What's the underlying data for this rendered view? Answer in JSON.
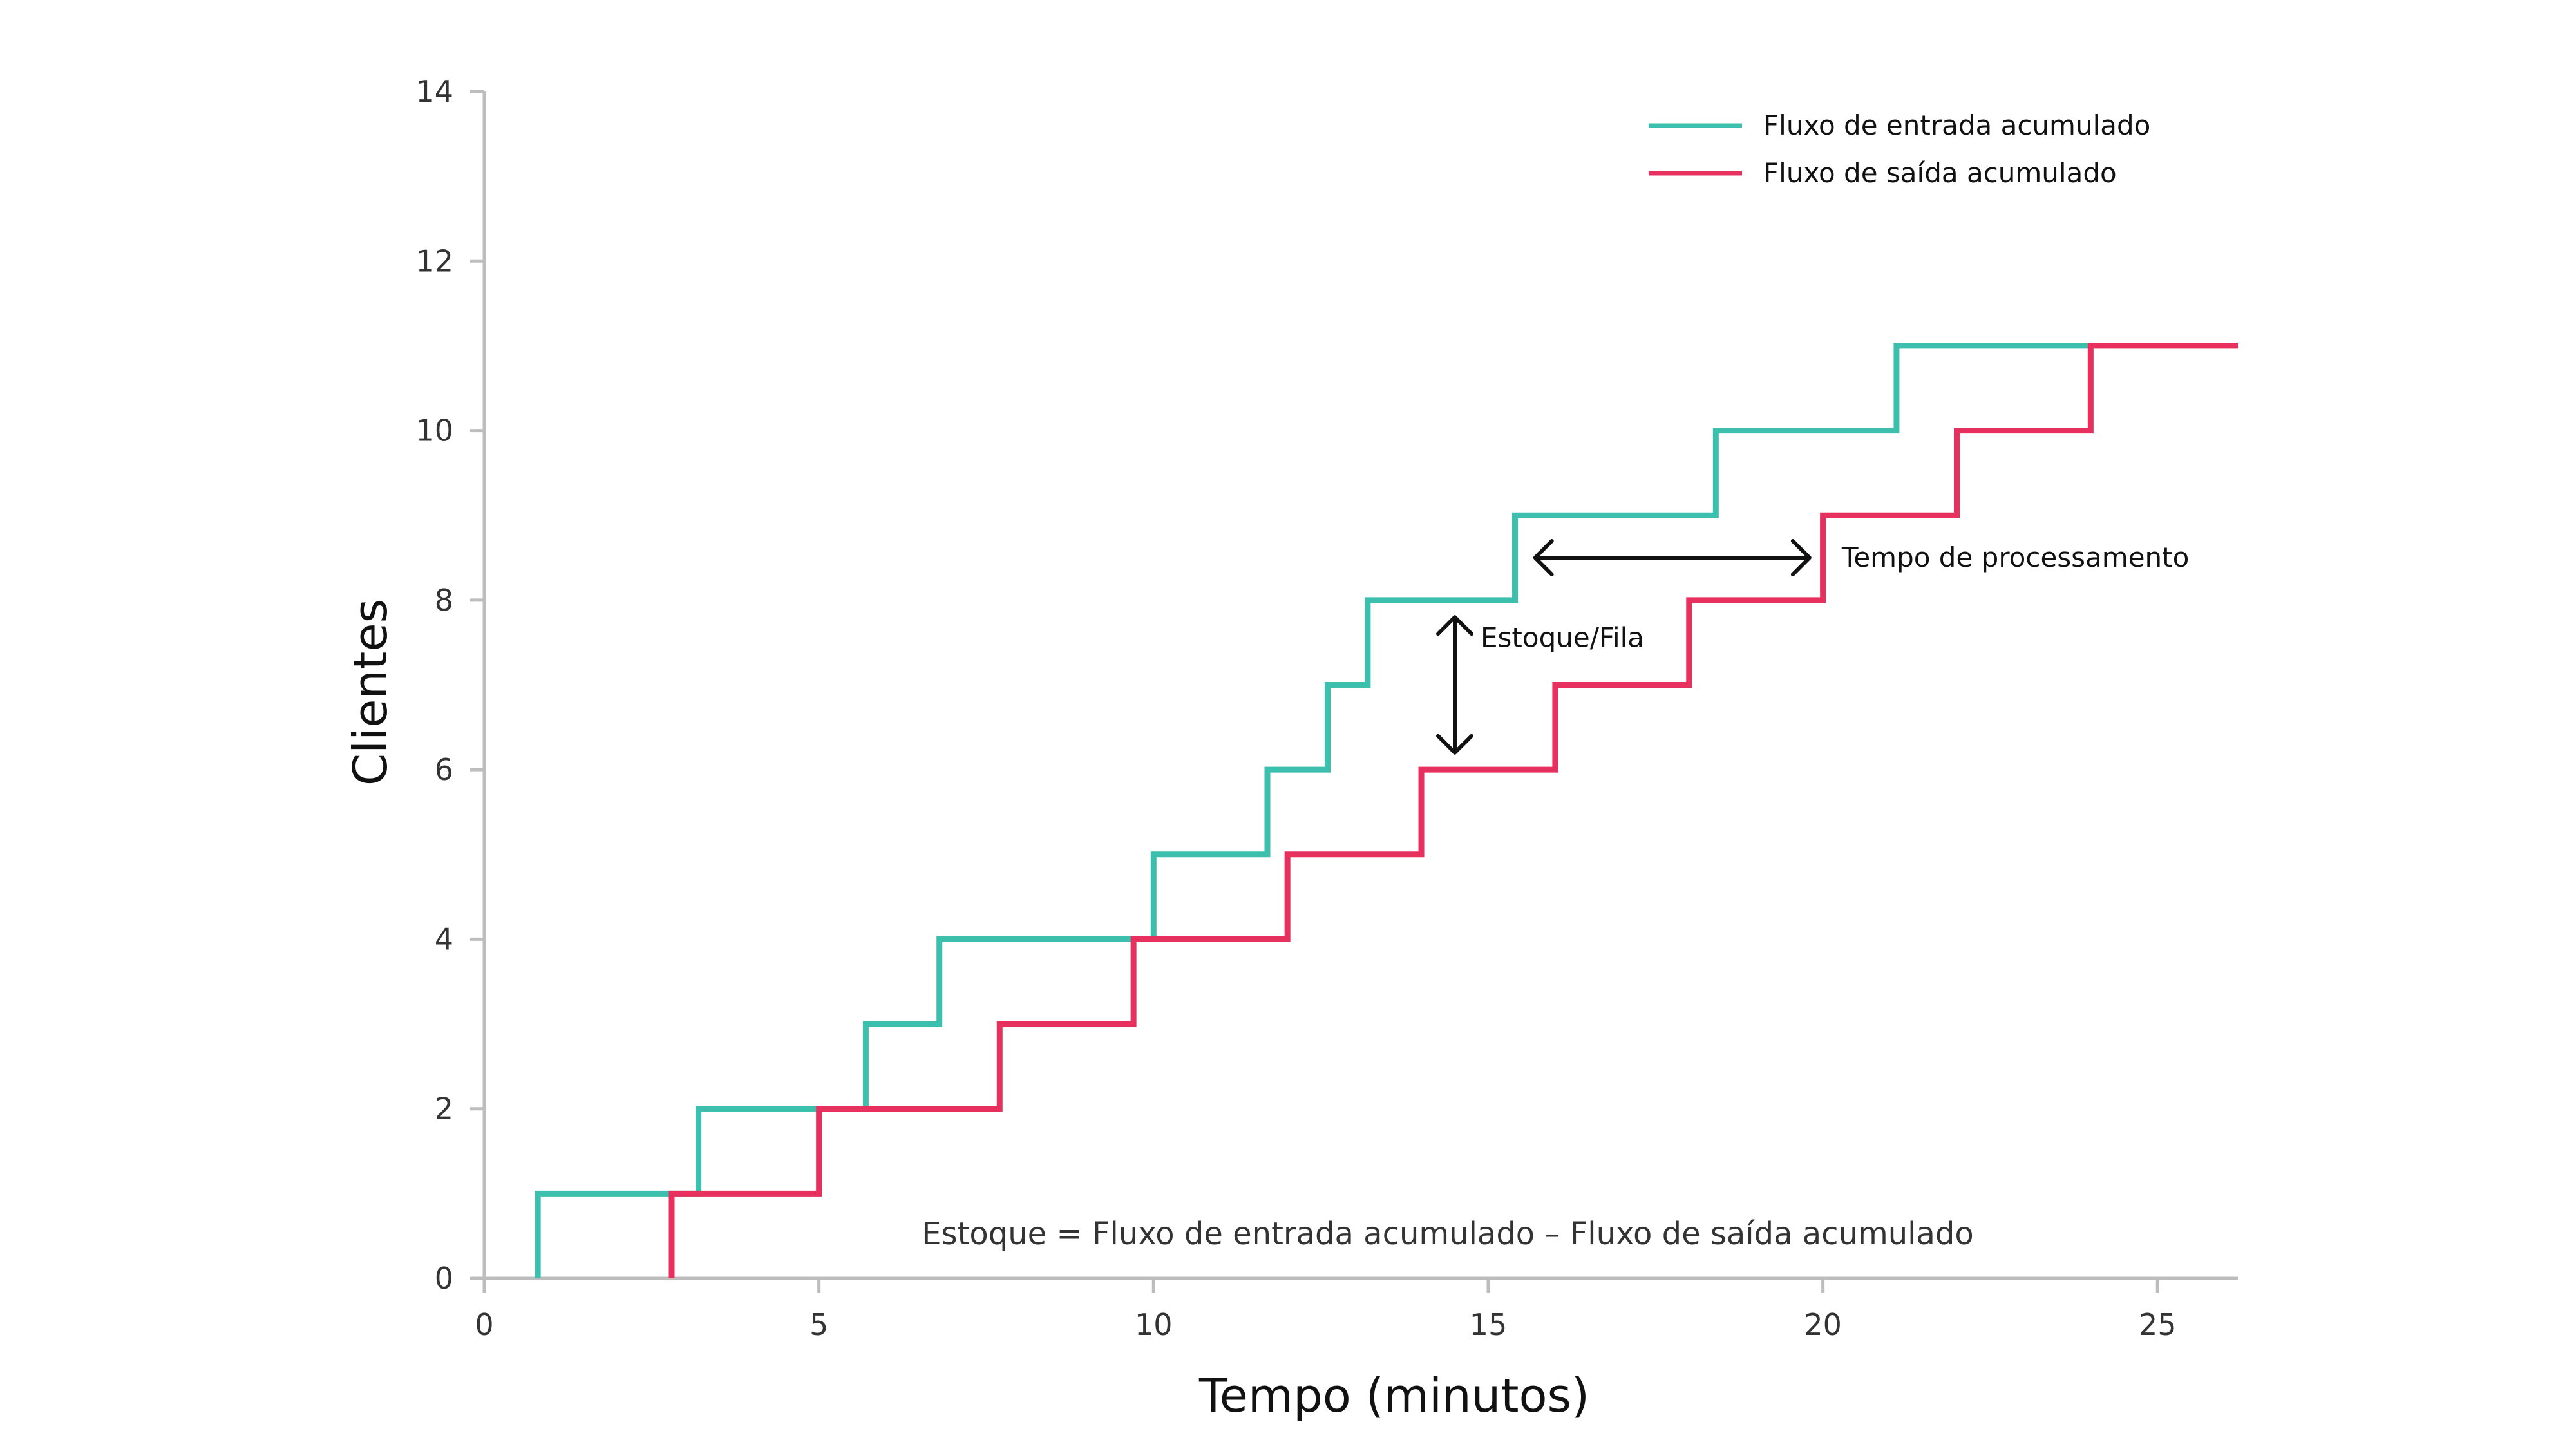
{
  "chart_data": {
    "type": "line",
    "step": true,
    "title": "",
    "xlabel": "Tempo (minutos)",
    "ylabel": "Clientes",
    "xlim": [
      0,
      26.2
    ],
    "ylim": [
      0,
      14
    ],
    "xticks": [
      0,
      5,
      10,
      15,
      20,
      25
    ],
    "yticks": [
      0,
      2,
      4,
      6,
      8,
      10,
      12,
      14
    ],
    "grid": false,
    "legend": {
      "placement": "top-right"
    },
    "series": [
      {
        "name": "Fluxo de entrada acumulado",
        "color": "#3dbfad",
        "x": [
          0.8,
          3.2,
          5.7,
          6.8,
          10.0,
          11.7,
          12.6,
          13.2,
          15.4,
          18.4,
          21.1,
          24.0
        ],
        "y": [
          1,
          2,
          3,
          4,
          5,
          6,
          7,
          8,
          9,
          10,
          11,
          11
        ]
      },
      {
        "name": "Fluxo de saída acumulado",
        "color": "#e8305f",
        "x": [
          2.8,
          5.0,
          7.7,
          9.7,
          12.0,
          14.0,
          16.0,
          18.0,
          20.0,
          22.0,
          24.0,
          26.2
        ],
        "y": [
          1,
          2,
          3,
          4,
          5,
          6,
          7,
          8,
          9,
          10,
          11,
          11
        ]
      }
    ],
    "annotations": [
      {
        "text": "Tempo de processamento",
        "kind": "horizontal-arrow",
        "x_from": 15.7,
        "x_to": 19.8,
        "y": 8.5
      },
      {
        "text": "Estoque/Fila",
        "kind": "vertical-arrow",
        "x": 14.5,
        "y_from": 6.2,
        "y_to": 7.8
      },
      {
        "text": "Estoque = Fluxo de entrada acumulado – Fluxo de saída acumulado",
        "kind": "formula"
      }
    ]
  }
}
